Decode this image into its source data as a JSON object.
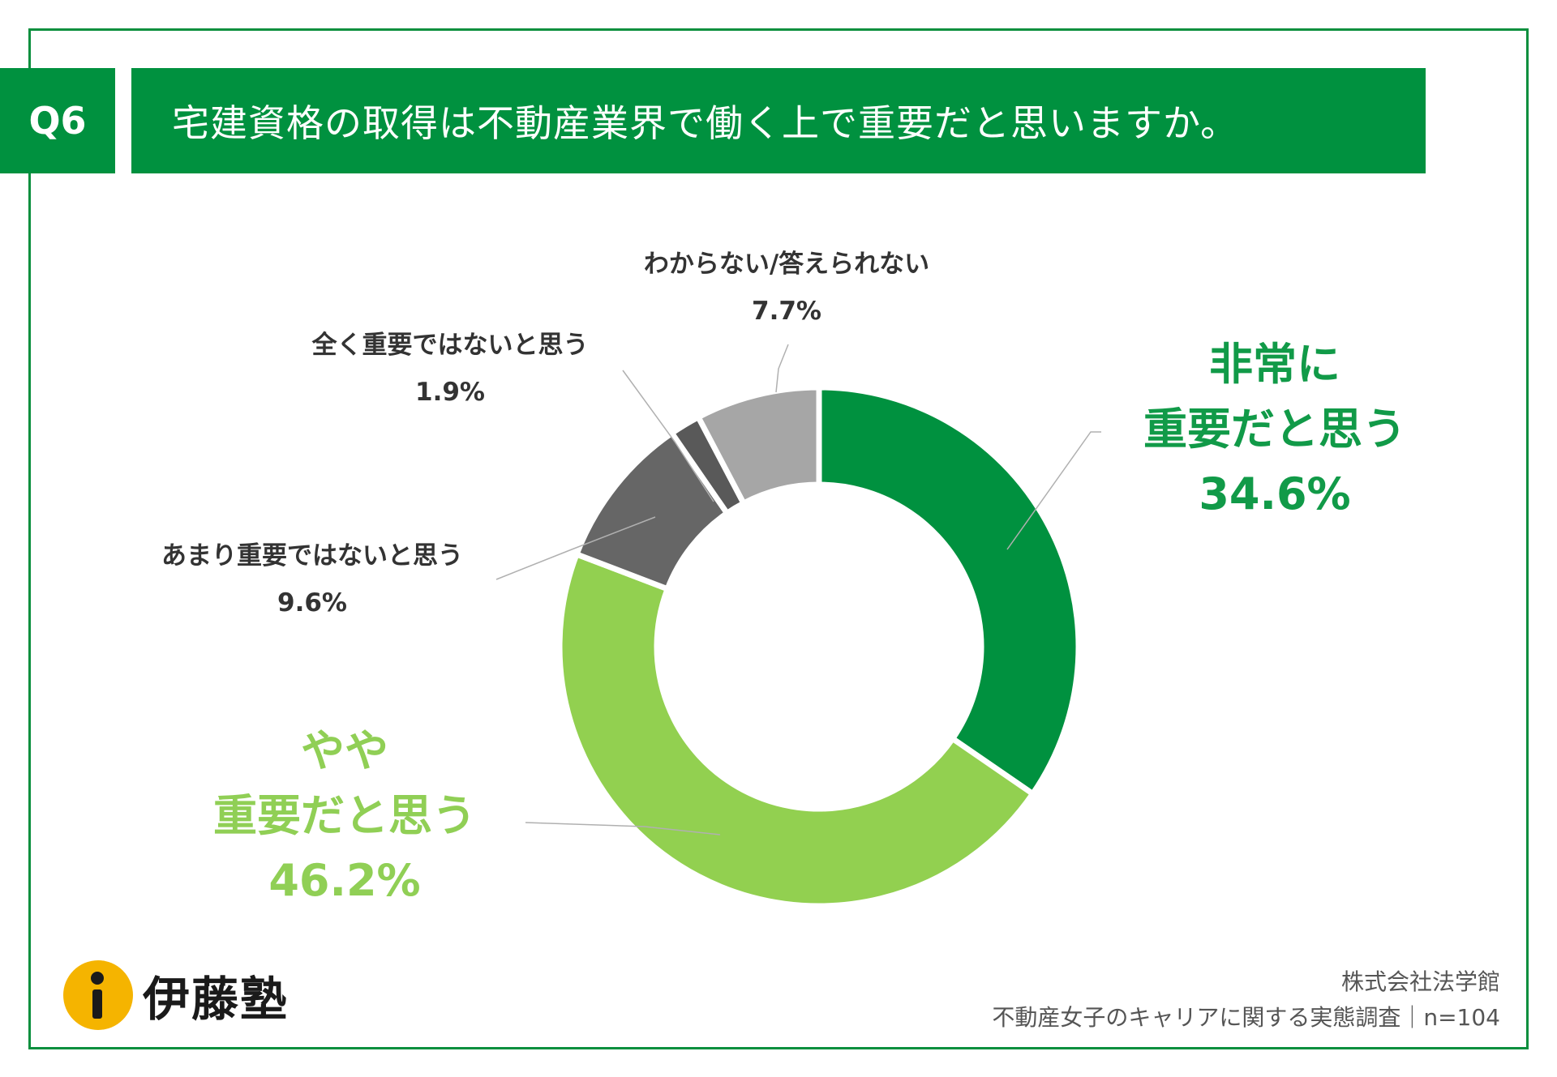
{
  "header": {
    "q_label": "Q6",
    "question": "宅建資格の取得は不動産業界で働く上で重要だと思いますか。"
  },
  "chart_data": {
    "type": "pie",
    "subtype": "donut",
    "title": "宅建資格の取得は不動産業界で働く上で重要だと思いますか。",
    "slices": [
      {
        "label_lines": [
          "非常に",
          "重要だと思う"
        ],
        "value": 34.6,
        "value_label": "34.6%",
        "color": "#00913f"
      },
      {
        "label_lines": [
          "やや",
          "重要だと思う"
        ],
        "value": 46.2,
        "value_label": "46.2%",
        "color": "#92d050"
      },
      {
        "label_lines": [
          "あまり重要ではないと思う"
        ],
        "value": 9.6,
        "value_label": "9.6%",
        "color": "#666666"
      },
      {
        "label_lines": [
          "全く重要ではないと思う"
        ],
        "value": 1.9,
        "value_label": "1.9%",
        "color": "#595959"
      },
      {
        "label_lines": [
          "わからない/答えられない"
        ],
        "value": 7.7,
        "value_label": "7.7%",
        "color": "#a6a6a6"
      }
    ]
  },
  "footer": {
    "logo_text": "伊藤塾",
    "company": "株式会社法学館",
    "survey": "不動産女子のキャリアに関する実態調査｜n=104"
  }
}
